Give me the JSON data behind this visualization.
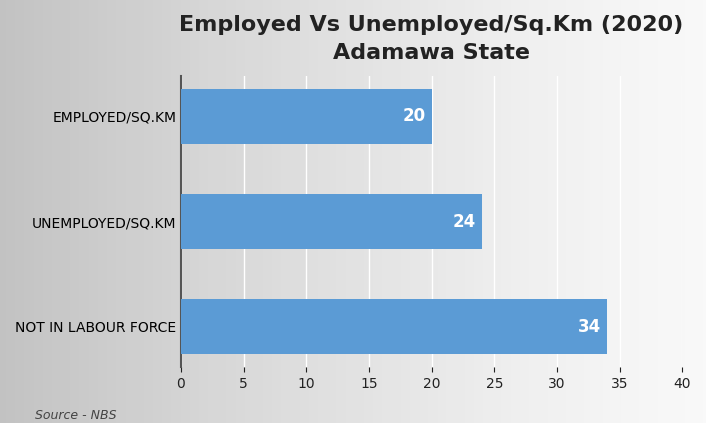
{
  "title_line1": "Employed Vs Unemployed/Sq.Km (2020)",
  "title_line2": "Adamawa State",
  "categories": [
    "NOT IN LABOUR FORCE",
    "UNEMPLOYED/SQ.KM",
    "EMPLOYED/SQ.KM"
  ],
  "values": [
    34,
    24,
    20
  ],
  "bar_color": "#5B9BD5",
  "label_color": "#FFFFFF",
  "value_labels": [
    "34",
    "24",
    "20"
  ],
  "xlim": [
    0,
    40
  ],
  "xticks": [
    0,
    5,
    10,
    15,
    20,
    25,
    30,
    35,
    40
  ],
  "source_text": "Source - NBS",
  "title_fontsize": 16,
  "tick_fontsize": 10,
  "label_fontsize": 10,
  "value_fontsize": 12,
  "source_fontsize": 9,
  "grid_color": "#FFFFFF",
  "grid_linewidth": 1.0,
  "bar_height": 0.52,
  "spine_color": "#555555",
  "text_color": "#222222"
}
